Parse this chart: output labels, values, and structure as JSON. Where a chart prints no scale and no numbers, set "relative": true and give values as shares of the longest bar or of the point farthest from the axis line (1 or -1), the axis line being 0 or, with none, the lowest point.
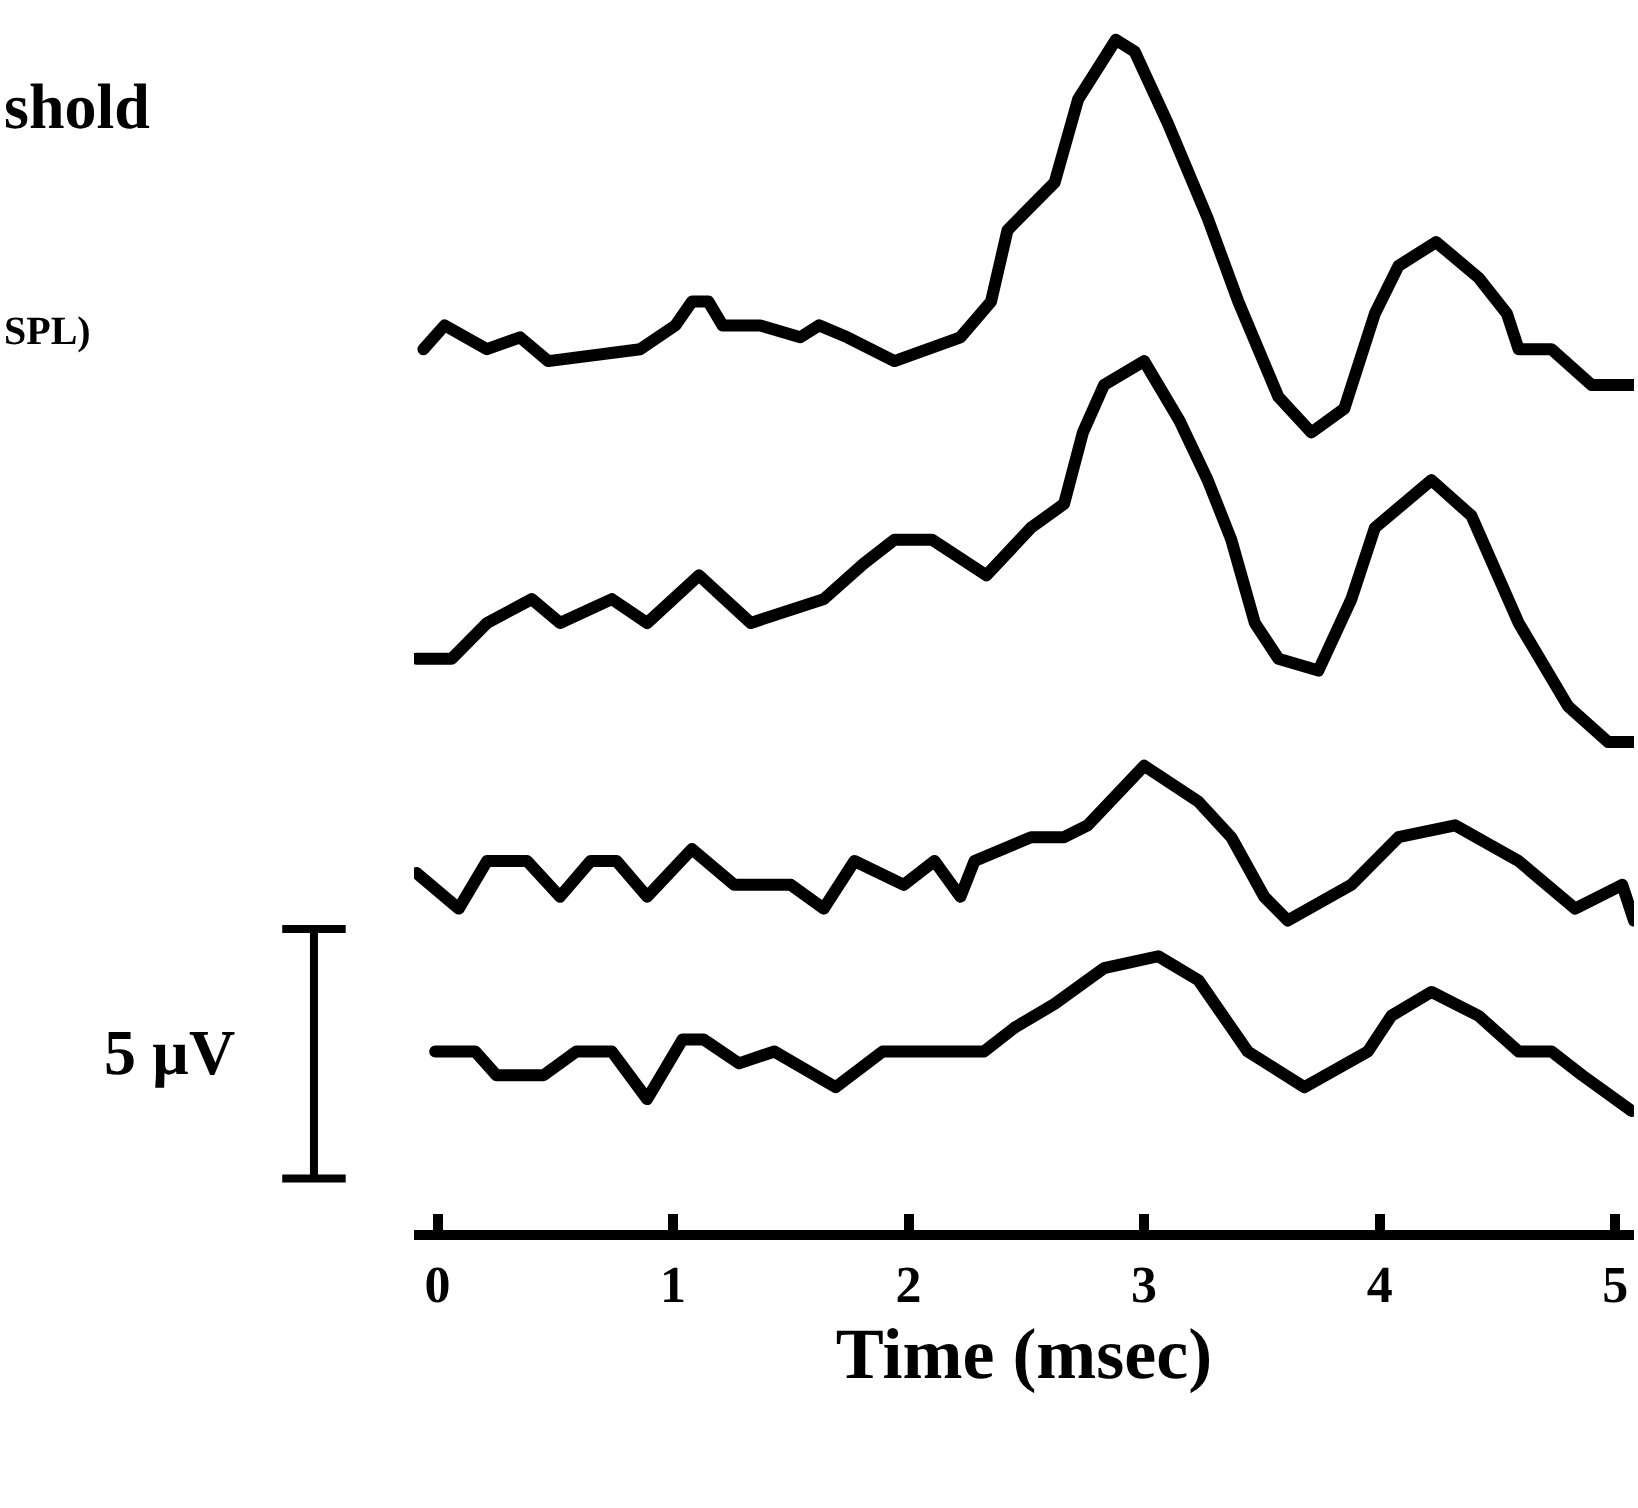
{
  "chart_data": {
    "type": "line",
    "relative": true,
    "xlabel": "Time (msec)",
    "xlim": [
      -0.1,
      5.08
    ],
    "xticks": [
      0,
      1,
      2,
      3,
      4,
      5
    ],
    "tick_labels": "x",
    "annotations": [
      "shold",
      "SPL)",
      "5 µV"
    ],
    "series": [
      {
        "color": "#000000",
        "x": [
          -0.06,
          0.03,
          0.21,
          0.35,
          0.47,
          0.86,
          1.01,
          1.08,
          1.15,
          1.21,
          1.37,
          1.54,
          1.62,
          1.74,
          1.94,
          2.22,
          2.35,
          2.42,
          2.62,
          2.72,
          2.88,
          2.96,
          3.1,
          3.27,
          3.4,
          3.57,
          3.71,
          3.85,
          3.98,
          4.08,
          4.24,
          4.42,
          4.54,
          4.59,
          4.73,
          4.9,
          5.08
        ],
        "values": [
          0.74,
          0.76,
          0.74,
          0.75,
          0.73,
          0.74,
          0.76,
          0.78,
          0.78,
          0.76,
          0.76,
          0.75,
          0.76,
          0.75,
          0.73,
          0.75,
          0.78,
          0.84,
          0.88,
          0.95,
          1.0,
          0.99,
          0.93,
          0.85,
          0.78,
          0.7,
          0.67,
          0.69,
          0.77,
          0.81,
          0.83,
          0.8,
          0.77,
          0.74,
          0.74,
          0.71,
          0.71
        ]
      },
      {
        "color": "#000000",
        "x": [
          -0.09,
          0.06,
          0.21,
          0.4,
          0.52,
          0.74,
          0.89,
          1.11,
          1.33,
          1.64,
          1.81,
          1.94,
          2.1,
          2.33,
          2.52,
          2.66,
          2.74,
          2.83,
          3.0,
          3.15,
          3.27,
          3.37,
          3.47,
          3.57,
          3.74,
          3.88,
          3.98,
          4.22,
          4.39,
          4.59,
          4.8,
          4.97,
          5.08
        ],
        "values": [
          0.48,
          0.48,
          0.51,
          0.53,
          0.51,
          0.53,
          0.51,
          0.55,
          0.51,
          0.53,
          0.56,
          0.58,
          0.58,
          0.55,
          0.59,
          0.61,
          0.67,
          0.71,
          0.73,
          0.68,
          0.63,
          0.58,
          0.51,
          0.48,
          0.47,
          0.53,
          0.59,
          0.63,
          0.6,
          0.51,
          0.44,
          0.41,
          0.41
        ]
      },
      {
        "color": "#000000",
        "x": [
          -0.09,
          0.09,
          0.21,
          0.38,
          0.52,
          0.65,
          0.76,
          0.89,
          1.08,
          1.26,
          1.5,
          1.64,
          1.77,
          1.98,
          2.11,
          2.22,
          2.28,
          2.52,
          2.66,
          2.76,
          3.0,
          3.23,
          3.37,
          3.51,
          3.61,
          3.88,
          4.08,
          4.32,
          4.59,
          4.83,
          5.03,
          5.08
        ],
        "values": [
          0.3,
          0.27,
          0.31,
          0.31,
          0.28,
          0.31,
          0.31,
          0.28,
          0.32,
          0.29,
          0.29,
          0.27,
          0.31,
          0.29,
          0.31,
          0.28,
          0.31,
          0.33,
          0.33,
          0.34,
          0.39,
          0.36,
          0.33,
          0.28,
          0.26,
          0.29,
          0.33,
          0.34,
          0.31,
          0.27,
          0.29,
          0.26
        ]
      },
      {
        "color": "#000000",
        "x": [
          -0.01,
          0.16,
          0.25,
          0.45,
          0.59,
          0.74,
          0.89,
          1.04,
          1.13,
          1.28,
          1.43,
          1.69,
          1.89,
          1.96,
          2.32,
          2.45,
          2.62,
          2.83,
          3.06,
          3.23,
          3.37,
          3.44,
          3.68,
          3.95,
          4.05,
          4.22,
          4.42,
          4.59,
          4.73,
          4.86,
          5.07
        ],
        "values": [
          0.15,
          0.15,
          0.13,
          0.13,
          0.15,
          0.15,
          0.11,
          0.16,
          0.16,
          0.14,
          0.15,
          0.12,
          0.15,
          0.15,
          0.15,
          0.17,
          0.19,
          0.22,
          0.23,
          0.21,
          0.17,
          0.15,
          0.12,
          0.15,
          0.18,
          0.2,
          0.18,
          0.15,
          0.15,
          0.13,
          0.1
        ]
      }
    ]
  }
}
